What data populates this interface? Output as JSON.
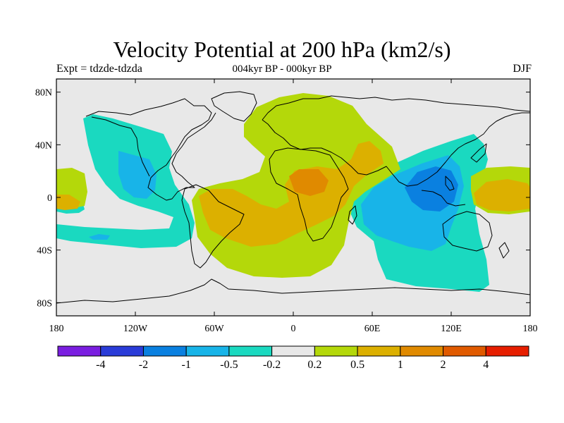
{
  "header": {
    "title": "Velocity Potential at 200 hPa (km2/s)",
    "expt": "Expt = tdzde-tdzda",
    "period": "004kyr BP - 000kyr BP",
    "season": "DJF"
  },
  "map": {
    "projection": "cylindrical equidistant",
    "lon_range": [
      -180,
      180
    ],
    "lat_range": [
      -90,
      90
    ],
    "background_color": "#e8e8e8",
    "lat_ticks": [
      {
        "value": 80,
        "label": "80N"
      },
      {
        "value": 40,
        "label": "40N"
      },
      {
        "value": 0,
        "label": "0"
      },
      {
        "value": -40,
        "label": "40S"
      },
      {
        "value": -80,
        "label": "80S"
      }
    ],
    "lon_ticks": [
      {
        "value": -180,
        "label": "180"
      },
      {
        "value": -120,
        "label": "120W"
      },
      {
        "value": -60,
        "label": "60W"
      },
      {
        "value": 0,
        "label": "0"
      },
      {
        "value": 60,
        "label": "60E"
      },
      {
        "value": 120,
        "label": "120E"
      },
      {
        "value": 180,
        "label": "180"
      }
    ]
  },
  "colorbar": {
    "colors": [
      "#7a1ee0",
      "#2a3cd8",
      "#0a80e0",
      "#18b4e8",
      "#1ad9c0",
      "#e8e8e8",
      "#b4d80a",
      "#dcb000",
      "#e08a00",
      "#e05a00",
      "#e61e00"
    ],
    "labels": [
      "-4",
      "-2",
      "-1",
      "-0.5",
      "-0.2",
      "0.2",
      "0.5",
      "1",
      "2",
      "4"
    ]
  }
}
